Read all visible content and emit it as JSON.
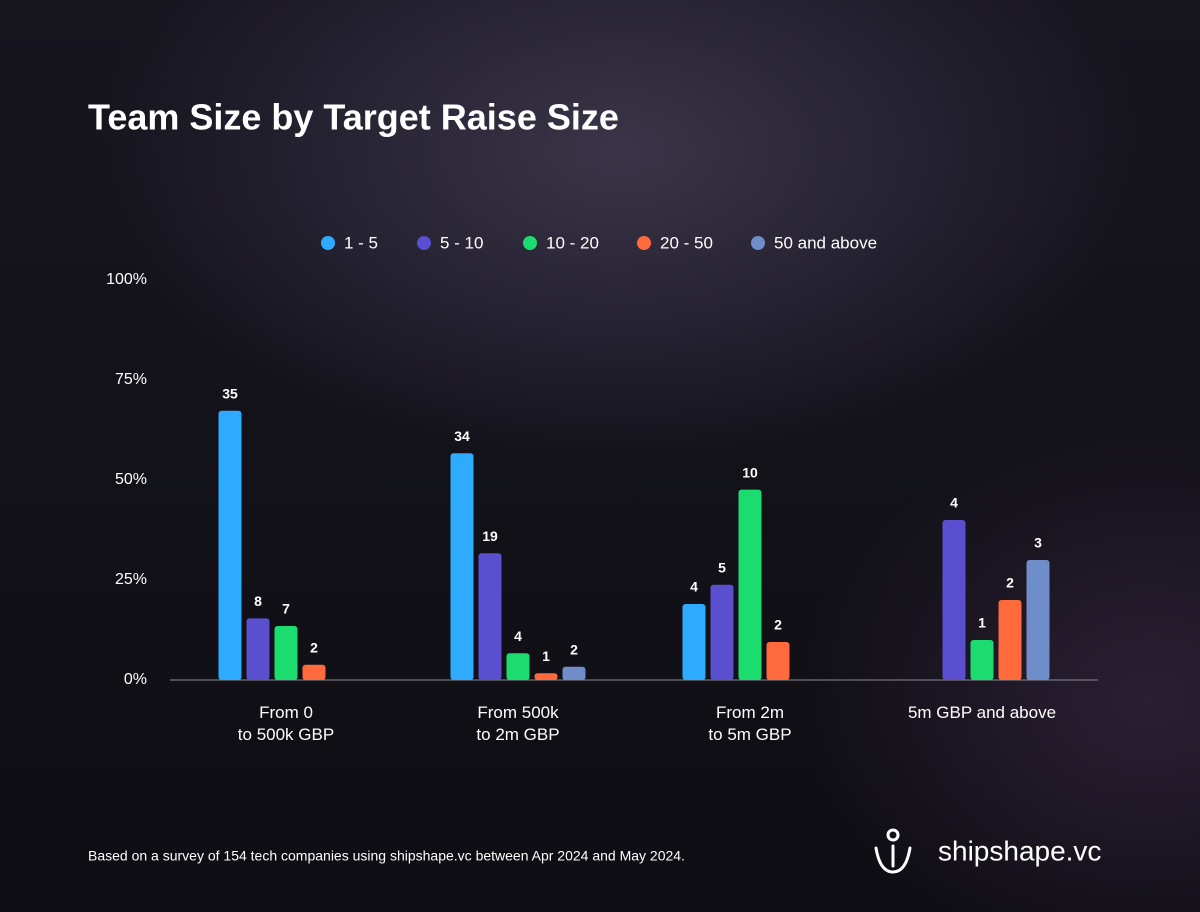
{
  "chart_data": {
    "type": "bar",
    "title": "Team Size by Target Raise Size",
    "categories": [
      "From 0\nto 500k GBP",
      "From 500k\nto 2m GBP",
      "From 2m\nto 5m GBP",
      "5m GBP and above"
    ],
    "series": [
      {
        "name": "1 - 5",
        "color": "#2eaaff",
        "values": [
          67.3,
          56.7,
          19.0,
          null
        ],
        "counts": [
          35,
          34,
          4,
          null
        ]
      },
      {
        "name": "5 - 10",
        "color": "#5a4fcf",
        "values": [
          15.4,
          31.7,
          23.8,
          40.0
        ],
        "counts": [
          8,
          19,
          5,
          4
        ]
      },
      {
        "name": "10 - 20",
        "color": "#1ddc6f",
        "values": [
          13.5,
          6.7,
          47.6,
          10.0
        ],
        "counts": [
          7,
          4,
          10,
          1
        ]
      },
      {
        "name": "20 - 50",
        "color": "#ff6a3d",
        "values": [
          3.8,
          1.7,
          9.5,
          20.0
        ],
        "counts": [
          2,
          1,
          2,
          2
        ]
      },
      {
        "name": "50 and above",
        "color": "#6f8ec9",
        "values": [
          null,
          3.3,
          null,
          30.0
        ],
        "counts": [
          null,
          2,
          null,
          3
        ]
      }
    ],
    "ylim": [
      0,
      100
    ],
    "yticks": [
      {
        "value": 0,
        "label": "0%"
      },
      {
        "value": 25,
        "label": "25%"
      },
      {
        "value": 50,
        "label": "50%"
      },
      {
        "value": 75,
        "label": "75%"
      },
      {
        "value": 100,
        "label": "100%"
      }
    ],
    "legend": "top",
    "footnote": "Based on a survey of 154 tech companies using shipshape.vc between Apr 2024 and May 2024.",
    "brand": "shipshape.vc"
  }
}
